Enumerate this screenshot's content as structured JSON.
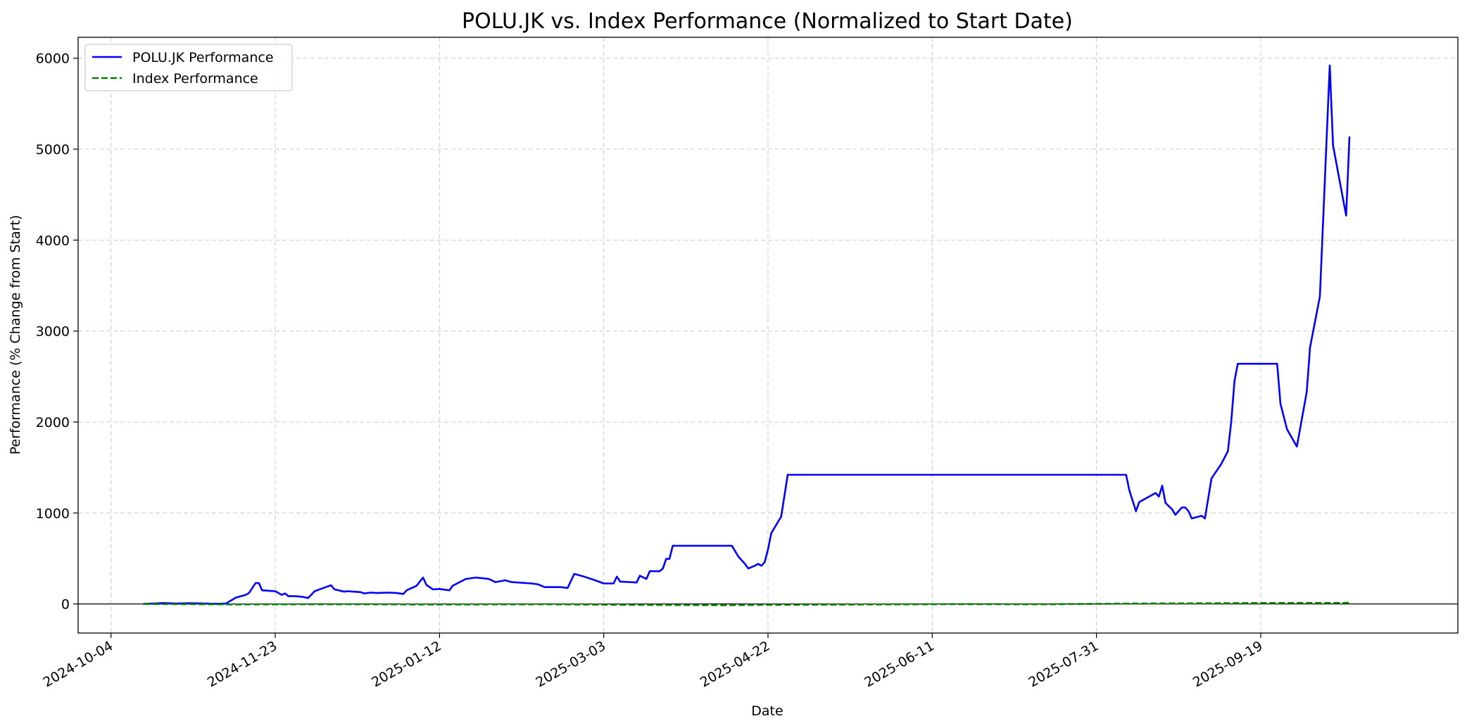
{
  "chart_data": {
    "type": "line",
    "title": "POLU.JK vs. Index Performance (Normalized to Start Date)",
    "xlabel": "Date",
    "ylabel": "Performance (% Change from Start)",
    "x_axis_type": "date",
    "xlim": [
      "2024-09-24",
      "2025-11-18"
    ],
    "ylim": [
      -320,
      6230
    ],
    "xticks": [
      "2024-10-04",
      "2024-11-23",
      "2025-01-12",
      "2025-03-03",
      "2025-04-22",
      "2025-06-11",
      "2025-07-31",
      "2025-09-19"
    ],
    "yticks": [
      0,
      1000,
      2000,
      3000,
      4000,
      5000,
      6000
    ],
    "grid": true,
    "legend_position": "top-left",
    "zero_line": true,
    "series": [
      {
        "name": "POLU.JK Performance",
        "color": "#0000ff",
        "style": "solid",
        "points": [
          [
            "2024-10-14",
            0
          ],
          [
            "2024-10-17",
            5
          ],
          [
            "2024-10-20",
            10
          ],
          [
            "2024-10-24",
            5
          ],
          [
            "2024-10-28",
            8
          ],
          [
            "2024-11-02",
            5
          ],
          [
            "2024-11-05",
            2
          ],
          [
            "2024-11-08",
            5
          ],
          [
            "2024-11-11",
            70
          ],
          [
            "2024-11-14",
            100
          ],
          [
            "2024-11-15",
            120
          ],
          [
            "2024-11-17",
            230
          ],
          [
            "2024-11-18",
            230
          ],
          [
            "2024-11-19",
            150
          ],
          [
            "2024-11-21",
            145
          ],
          [
            "2024-11-23",
            140
          ],
          [
            "2024-11-25",
            100
          ],
          [
            "2024-11-26",
            115
          ],
          [
            "2024-11-27",
            85
          ],
          [
            "2024-11-29",
            85
          ],
          [
            "2024-12-01",
            80
          ],
          [
            "2024-12-03",
            65
          ],
          [
            "2024-12-05",
            140
          ],
          [
            "2024-12-08",
            180
          ],
          [
            "2024-12-10",
            205
          ],
          [
            "2024-12-11",
            160
          ],
          [
            "2024-12-14",
            135
          ],
          [
            "2024-12-15",
            140
          ],
          [
            "2024-12-17",
            135
          ],
          [
            "2024-12-19",
            130
          ],
          [
            "2024-12-20",
            115
          ],
          [
            "2024-12-22",
            125
          ],
          [
            "2024-12-24",
            120
          ],
          [
            "2024-12-27",
            125
          ],
          [
            "2024-12-30",
            120
          ],
          [
            "2025-01-01",
            110
          ],
          [
            "2025-01-02",
            150
          ],
          [
            "2025-01-05",
            200
          ],
          [
            "2025-01-07",
            290
          ],
          [
            "2025-01-08",
            210
          ],
          [
            "2025-01-10",
            160
          ],
          [
            "2025-01-12",
            165
          ],
          [
            "2025-01-15",
            150
          ],
          [
            "2025-01-16",
            200
          ],
          [
            "2025-01-20",
            275
          ],
          [
            "2025-01-23",
            290
          ],
          [
            "2025-01-27",
            275
          ],
          [
            "2025-01-29",
            240
          ],
          [
            "2025-02-01",
            260
          ],
          [
            "2025-02-03",
            240
          ],
          [
            "2025-02-05",
            235
          ],
          [
            "2025-02-09",
            225
          ],
          [
            "2025-02-11",
            215
          ],
          [
            "2025-02-13",
            185
          ],
          [
            "2025-02-18",
            185
          ],
          [
            "2025-02-20",
            175
          ],
          [
            "2025-02-22",
            330
          ],
          [
            "2025-02-25",
            300
          ],
          [
            "2025-02-28",
            265
          ],
          [
            "2025-03-03",
            225
          ],
          [
            "2025-03-06",
            225
          ],
          [
            "2025-03-07",
            300
          ],
          [
            "2025-03-08",
            245
          ],
          [
            "2025-03-11",
            240
          ],
          [
            "2025-03-13",
            235
          ],
          [
            "2025-03-14",
            310
          ],
          [
            "2025-03-16",
            275
          ],
          [
            "2025-03-17",
            360
          ],
          [
            "2025-03-20",
            360
          ],
          [
            "2025-03-21",
            390
          ],
          [
            "2025-03-22",
            495
          ],
          [
            "2025-03-23",
            495
          ],
          [
            "2025-03-24",
            640
          ],
          [
            "2025-04-11",
            640
          ],
          [
            "2025-04-13",
            520
          ],
          [
            "2025-04-15",
            440
          ],
          [
            "2025-04-16",
            390
          ],
          [
            "2025-04-18",
            420
          ],
          [
            "2025-04-19",
            440
          ],
          [
            "2025-04-20",
            420
          ],
          [
            "2025-04-21",
            460
          ],
          [
            "2025-04-22",
            600
          ],
          [
            "2025-04-23",
            780
          ],
          [
            "2025-04-26",
            960
          ],
          [
            "2025-04-28",
            1420
          ],
          [
            "2025-08-09",
            1420
          ],
          [
            "2025-08-10",
            1250
          ],
          [
            "2025-08-12",
            1020
          ],
          [
            "2025-08-13",
            1120
          ],
          [
            "2025-08-15",
            1160
          ],
          [
            "2025-08-18",
            1220
          ],
          [
            "2025-08-19",
            1180
          ],
          [
            "2025-08-20",
            1300
          ],
          [
            "2025-08-21",
            1110
          ],
          [
            "2025-08-23",
            1040
          ],
          [
            "2025-08-24",
            980
          ],
          [
            "2025-08-26",
            1060
          ],
          [
            "2025-08-27",
            1060
          ],
          [
            "2025-08-28",
            1020
          ],
          [
            "2025-08-29",
            940
          ],
          [
            "2025-09-01",
            970
          ],
          [
            "2025-09-02",
            940
          ],
          [
            "2025-09-04",
            1380
          ],
          [
            "2025-09-07",
            1540
          ],
          [
            "2025-09-09",
            1680
          ],
          [
            "2025-09-10",
            2000
          ],
          [
            "2025-09-11",
            2450
          ],
          [
            "2025-09-12",
            2640
          ],
          [
            "2025-09-24",
            2640
          ],
          [
            "2025-09-25",
            2200
          ],
          [
            "2025-09-27",
            1920
          ],
          [
            "2025-09-30",
            1730
          ],
          [
            "2025-10-03",
            2330
          ],
          [
            "2025-10-04",
            2820
          ],
          [
            "2025-10-07",
            3380
          ],
          [
            "2025-10-10",
            5920
          ],
          [
            "2025-10-11",
            5040
          ],
          [
            "2025-10-15",
            4270
          ],
          [
            "2025-10-16",
            5130
          ]
        ]
      },
      {
        "name": "Index Performance",
        "color": "#008000",
        "style": "dashed",
        "points": [
          [
            "2024-10-14",
            0
          ],
          [
            "2024-11-10",
            -5
          ],
          [
            "2024-12-15",
            -3
          ],
          [
            "2025-01-10",
            -6
          ],
          [
            "2025-02-15",
            -4
          ],
          [
            "2025-03-10",
            -10
          ],
          [
            "2025-04-08",
            -14
          ],
          [
            "2025-04-20",
            -11
          ],
          [
            "2025-05-20",
            -6
          ],
          [
            "2025-06-20",
            -2
          ],
          [
            "2025-07-15",
            -4
          ],
          [
            "2025-08-10",
            4
          ],
          [
            "2025-09-01",
            7
          ],
          [
            "2025-09-20",
            10
          ],
          [
            "2025-10-16",
            12
          ]
        ]
      }
    ]
  }
}
